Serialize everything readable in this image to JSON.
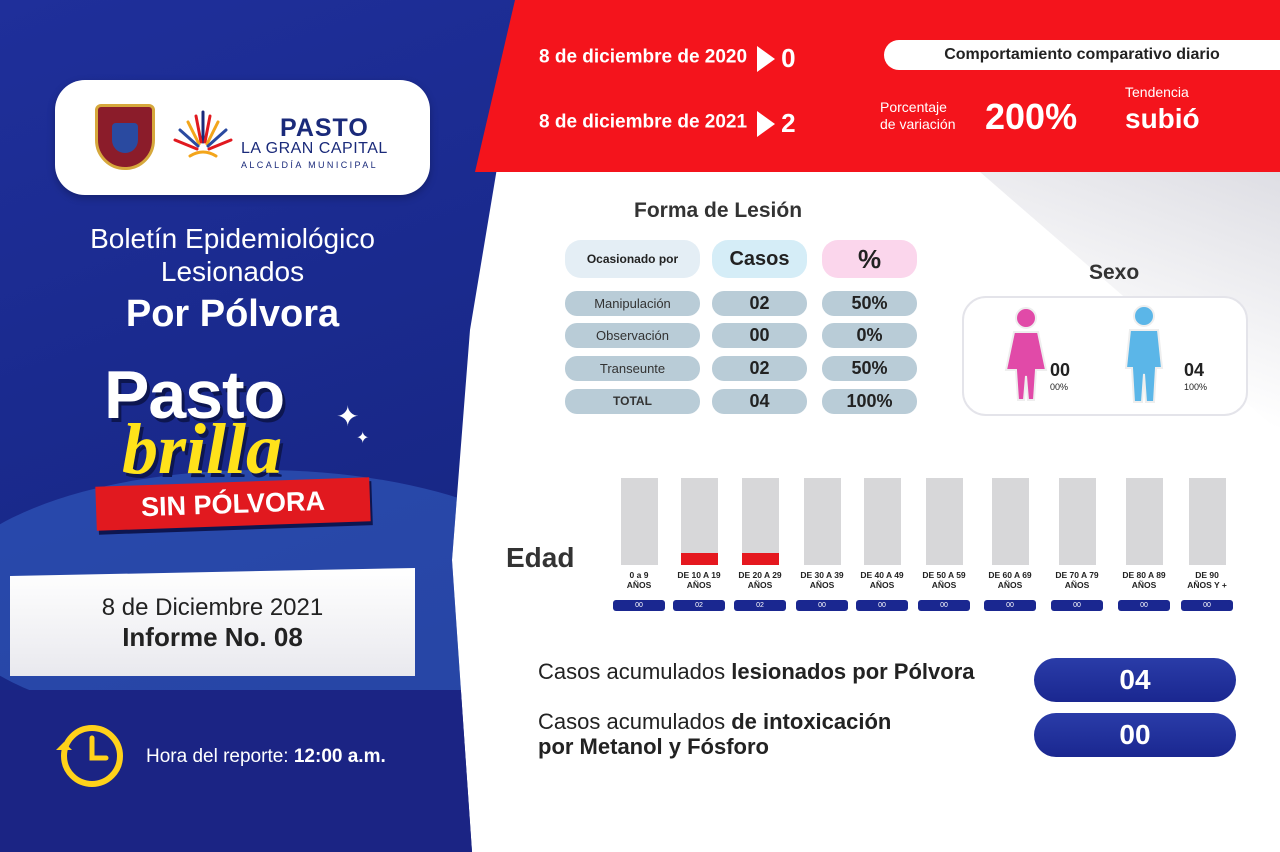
{
  "header": {
    "brand_name": "PASTO",
    "brand_sub": "LA GRAN CAPITAL",
    "brand_sub2": "ALCALDÍA MUNICIPAL"
  },
  "bulletin": {
    "line1": "Boletín Epidemiológico",
    "line2": "Lesionados",
    "line3": "Por Pólvora"
  },
  "campaign": {
    "word1": "Pasto",
    "word2": "brilla",
    "banner": "SIN PÓLVORA"
  },
  "report": {
    "date": "8 de Diciembre 2021",
    "number": "Informe No. 08",
    "hour_label": "Hora del reporte:",
    "hour_value": "12:00 a.m."
  },
  "comparison": {
    "row1_date": "8 de diciembre de 2020",
    "row1_value": "0",
    "row2_date": "8 de diciembre de 2021",
    "row2_value": "2",
    "daily_label": "Comportamiento comparativo diario",
    "pct_label_1": "Porcentaje",
    "pct_label_2": "de variación",
    "pct_value": "200%",
    "trend_label": "Tendencia",
    "trend_value": "subió"
  },
  "injury": {
    "title": "Forma de Lesión",
    "headers": {
      "cause": "Ocasionado por",
      "cases": "Casos",
      "pct": "%"
    },
    "rows": [
      {
        "cause": "Manipulación",
        "cases": "02",
        "pct": "50%"
      },
      {
        "cause": "Observación",
        "cases": "00",
        "pct": "0%"
      },
      {
        "cause": "Transeunte",
        "cases": "02",
        "pct": "50%"
      },
      {
        "cause": "TOTAL",
        "cases": "04",
        "pct": "100%"
      }
    ]
  },
  "sex": {
    "title": "Sexo",
    "female": {
      "value": "00",
      "pct": "00%"
    },
    "male": {
      "value": "04",
      "pct": "100%"
    }
  },
  "age": {
    "title": "Edad",
    "groups": [
      {
        "label_1": "0 a 9",
        "label_2": "AÑOS",
        "value": "00"
      },
      {
        "label_1": "DE 10 A 19",
        "label_2": "AÑOS",
        "value": "02"
      },
      {
        "label_1": "DE 20 A 29",
        "label_2": "AÑOS",
        "value": "02"
      },
      {
        "label_1": "DE 30 A 39",
        "label_2": "AÑOS",
        "value": "00"
      },
      {
        "label_1": "DE 40 A 49",
        "label_2": "AÑOS",
        "value": "00"
      },
      {
        "label_1": "DE 50 A 59",
        "label_2": "AÑOS",
        "value": "00"
      },
      {
        "label_1": "DE 60 A 69",
        "label_2": "AÑOS",
        "value": "00"
      },
      {
        "label_1": "DE 70 A 79",
        "label_2": "AÑOS",
        "value": "00"
      },
      {
        "label_1": "DE 80 A 89",
        "label_2": "AÑOS",
        "value": "00"
      },
      {
        "label_1": "DE 90",
        "label_2": "AÑOS Y +",
        "value": "00"
      }
    ]
  },
  "accumulated": {
    "row1_prefix": "Casos acumulados ",
    "row1_bold": "lesionados por Pólvora",
    "row1_value": "04",
    "row2_prefix": "Casos acumulados ",
    "row2_bold": "de intoxicación",
    "row2_line2": "por Metanol y Fósforo",
    "row2_value": "00"
  },
  "colors": {
    "brand_blue": "#1f2f9a",
    "accent_red": "#f4141c",
    "brand_yellow": "#ffe21a",
    "pill_gray": "#b9ccd7",
    "female_pink": "#e14aa8",
    "male_blue": "#5bb6e8"
  }
}
